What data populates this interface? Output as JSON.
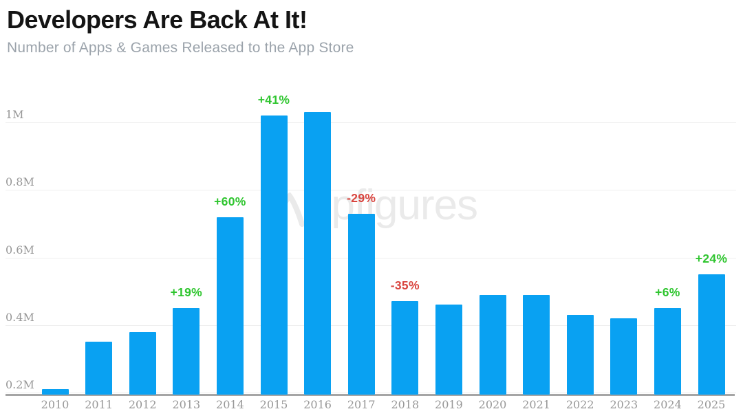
{
  "header": {
    "title": "Developers Are Back At It!",
    "subtitle": "Number of Apps & Games Released to the App Store"
  },
  "watermark": {
    "brand": "appfigures",
    "logo_icon": "appfigures-swoosh",
    "text_part": "ppfigures"
  },
  "colors": {
    "bar": "#09a1f2",
    "positive": "#2ec52e",
    "negative": "#d9453f",
    "title": "#141414",
    "subtitle": "#9ba3ab",
    "tick": "#979797",
    "gridline": "#eeeeee",
    "axis_line": "#a5a5a5",
    "watermark": "#eaeaea"
  },
  "chart_data": {
    "type": "bar",
    "title": "Developers Are Back At It!",
    "subtitle": "Number of Apps & Games Released to the App Store",
    "unit": "apps released per year (millions)",
    "categories": [
      "2010",
      "2011",
      "2012",
      "2013",
      "2014",
      "2015",
      "2016",
      "2017",
      "2018",
      "2019",
      "2020",
      "2021",
      "2022",
      "2023",
      "2024",
      "2025"
    ],
    "values": [
      0.21,
      0.35,
      0.38,
      0.45,
      0.72,
      1.02,
      1.03,
      0.73,
      0.47,
      0.46,
      0.49,
      0.49,
      0.43,
      0.42,
      0.45,
      0.55
    ],
    "y_ticks": [
      {
        "label": "0.2M",
        "value": 0.2
      },
      {
        "label": "0.4M",
        "value": 0.4
      },
      {
        "label": "0.6M",
        "value": 0.6
      },
      {
        "label": "0.8M",
        "value": 0.8
      },
      {
        "label": "1M",
        "value": 1.0
      }
    ],
    "ylim": [
      0.19,
      1.08
    ],
    "grid": true,
    "legend": "none",
    "xlabel": "",
    "ylabel": "",
    "annotations": [
      {
        "category": "2013",
        "label": "+19%",
        "sentiment": "positive"
      },
      {
        "category": "2014",
        "label": "+60%",
        "sentiment": "positive"
      },
      {
        "category": "2015",
        "label": "+41%",
        "sentiment": "positive"
      },
      {
        "category": "2017",
        "label": "-29%",
        "sentiment": "negative"
      },
      {
        "category": "2018",
        "label": "-35%",
        "sentiment": "negative"
      },
      {
        "category": "2024",
        "label": "+6%",
        "sentiment": "positive"
      },
      {
        "category": "2025",
        "label": "+24%",
        "sentiment": "positive"
      }
    ]
  }
}
